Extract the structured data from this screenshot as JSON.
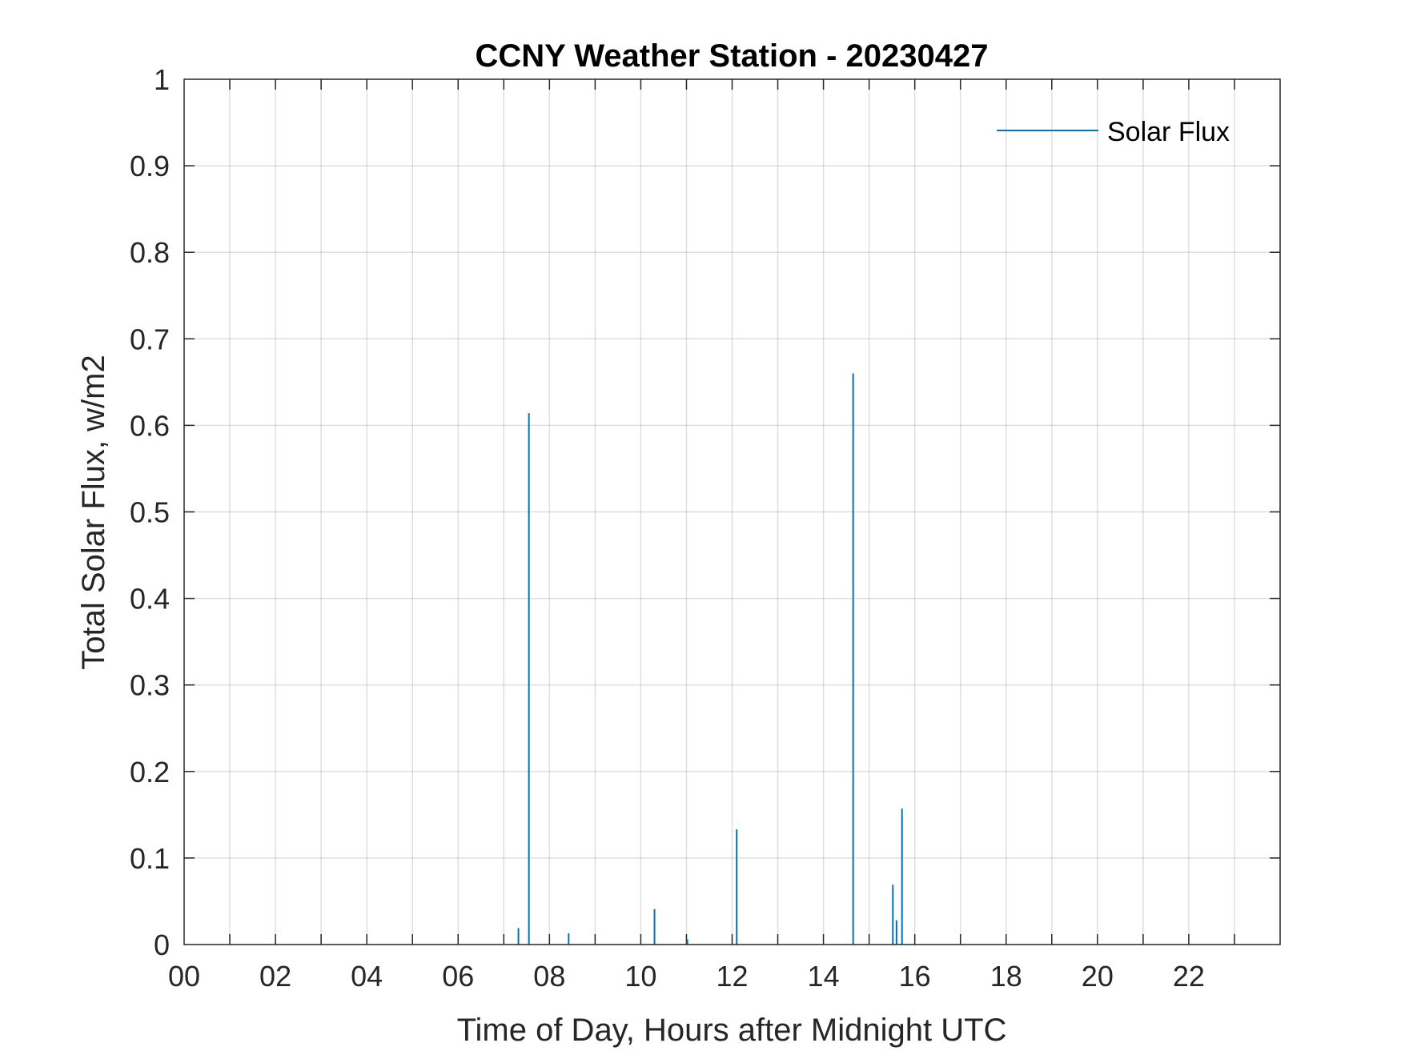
{
  "chart_data": {
    "type": "line",
    "title": "CCNY Weather Station - 20230427",
    "xlabel": "Time of Day, Hours after Midnight UTC",
    "ylabel": "Total Solar Flux, w/m2",
    "xlim": [
      0,
      24
    ],
    "ylim": [
      0,
      1
    ],
    "grid": true,
    "legend": {
      "placement": "top-right",
      "entries": [
        "Solar Flux"
      ]
    },
    "x_ticks": [
      {
        "value": 0,
        "label": "00"
      },
      {
        "value": 2,
        "label": "02"
      },
      {
        "value": 4,
        "label": "04"
      },
      {
        "value": 6,
        "label": "06"
      },
      {
        "value": 8,
        "label": "08"
      },
      {
        "value": 10,
        "label": "10"
      },
      {
        "value": 12,
        "label": "12"
      },
      {
        "value": 14,
        "label": "14"
      },
      {
        "value": 16,
        "label": "16"
      },
      {
        "value": 18,
        "label": "18"
      },
      {
        "value": 20,
        "label": "20"
      },
      {
        "value": 22,
        "label": "22"
      }
    ],
    "y_ticks": [
      {
        "value": 0,
        "label": "0"
      },
      {
        "value": 0.1,
        "label": "0.1"
      },
      {
        "value": 0.2,
        "label": "0.2"
      },
      {
        "value": 0.3,
        "label": "0.3"
      },
      {
        "value": 0.4,
        "label": "0.4"
      },
      {
        "value": 0.5,
        "label": "0.5"
      },
      {
        "value": 0.6,
        "label": "0.6"
      },
      {
        "value": 0.7,
        "label": "0.7"
      },
      {
        "value": 0.8,
        "label": "0.8"
      },
      {
        "value": 0.9,
        "label": "0.9"
      },
      {
        "value": 1,
        "label": "1"
      }
    ],
    "series": [
      {
        "name": "Solar Flux",
        "color": "#0072BD",
        "spikes": [
          {
            "x": 7.32,
            "y": 0.019
          },
          {
            "x": 7.55,
            "y": 0.614
          },
          {
            "x": 8.42,
            "y": 0.013
          },
          {
            "x": 10.3,
            "y": 0.041
          },
          {
            "x": 11.02,
            "y": 0.006
          },
          {
            "x": 12.1,
            "y": 0.133
          },
          {
            "x": 14.65,
            "y": 0.66
          },
          {
            "x": 15.52,
            "y": 0.069
          },
          {
            "x": 15.6,
            "y": 0.028
          },
          {
            "x": 15.72,
            "y": 0.157
          }
        ]
      }
    ]
  }
}
